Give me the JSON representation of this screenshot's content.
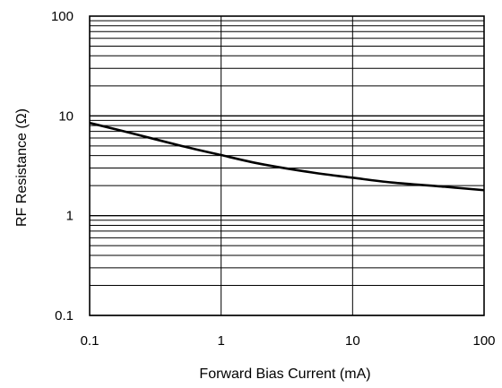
{
  "chart_data": {
    "type": "line",
    "xlabel": "Forward Bias Current (mA)",
    "ylabel": "RF Resistance (Ω)",
    "x_scale": "log",
    "y_scale": "log",
    "xlim": [
      0.1,
      100
    ],
    "ylim": [
      0.1,
      100
    ],
    "grid": true,
    "x_ticks": [
      "0.1",
      "1",
      "10",
      "100"
    ],
    "y_ticks": [
      "0.1",
      "1",
      "10",
      "100"
    ],
    "series": [
      {
        "x": [
          0.1,
          0.2,
          0.5,
          1,
          2,
          5,
          10,
          20,
          50,
          100
        ],
        "y": [
          8.5,
          6.8,
          5.0,
          4.05,
          3.3,
          2.7,
          2.4,
          2.15,
          1.95,
          1.8
        ]
      }
    ]
  }
}
